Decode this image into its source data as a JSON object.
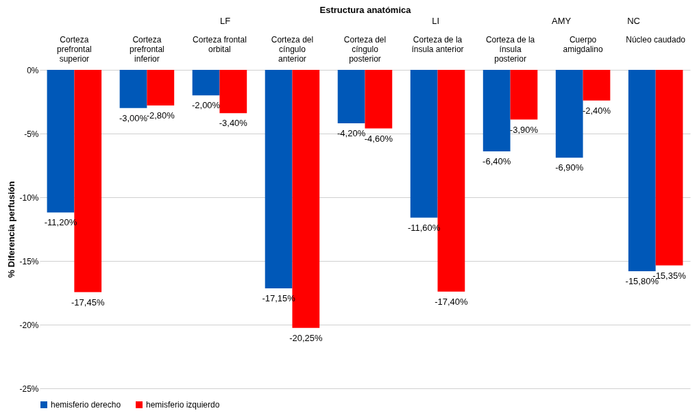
{
  "chart_data": {
    "type": "bar",
    "xlabel": "Estructura anatómica",
    "ylabel": "% Diferencia perfusión",
    "categories": [
      "Corteza prefrontal superior",
      "Corteza prefrontal inferior",
      "Corteza frontal orbital",
      "Corteza del cíngulo anterior",
      "Corteza del cíngulo posterior",
      "Corteza de la ínsula anterior",
      "Corteza de la ínsula posterior",
      "Cuerpo amigdalino",
      "Núcleo caudado"
    ],
    "series": [
      {
        "name": "hemisferio derecho",
        "color": "#0058b8",
        "values": [
          -11.2,
          -3,
          -2,
          -17.15,
          -4.2,
          -11.6,
          -6.4,
          -6.9,
          -15.8
        ],
        "value_labels": [
          "-11,20%",
          "-3,00%",
          "-2,00%",
          "-17,15%",
          "-4,20%",
          "-11,60%",
          "-6,40%",
          "-6,90%",
          "-15,80%"
        ]
      },
      {
        "name": "hemisferio izquierdo",
        "color": "#ff0000",
        "values": [
          -17.45,
          -2.8,
          -3.4,
          -20.25,
          -4.6,
          -17.4,
          -3.9,
          -2.4,
          -15.35
        ],
        "value_labels": [
          "-17,45%",
          "-2,80%",
          "-3,40%",
          "-20,25%",
          "-4,60%",
          "-17,40%",
          "-3,90%",
          "-2,40%",
          "-15,35%"
        ]
      }
    ],
    "annotations": [
      "LF",
      "LI",
      "AMY",
      "NC"
    ],
    "ylim": [
      -25,
      0
    ],
    "yticks": [
      {
        "value": 0,
        "label": "0%"
      },
      {
        "value": -5,
        "label": "-5%"
      },
      {
        "value": -10,
        "label": "-10%"
      },
      {
        "value": -15,
        "label": "-15%"
      },
      {
        "value": -20,
        "label": "-20%"
      },
      {
        "value": -25,
        "label": "-25%"
      }
    ],
    "grid": "y",
    "legend": "bottom"
  }
}
